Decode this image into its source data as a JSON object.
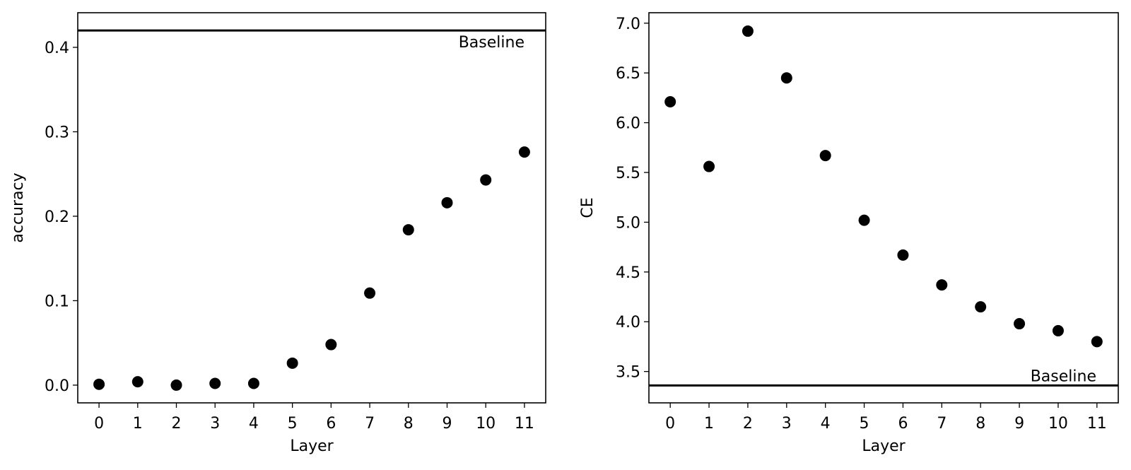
{
  "chart_data": [
    {
      "type": "scatter",
      "xlabel": "Layer",
      "ylabel": "accuracy",
      "x": [
        0,
        1,
        2,
        3,
        4,
        5,
        6,
        7,
        8,
        9,
        10,
        11
      ],
      "y": [
        0.001,
        0.004,
        0.0,
        0.002,
        0.002,
        0.026,
        0.048,
        0.109,
        0.184,
        0.216,
        0.243,
        0.276
      ],
      "xticks": [
        "0",
        "1",
        "2",
        "3",
        "4",
        "5",
        "6",
        "7",
        "8",
        "9",
        "10",
        "11"
      ],
      "yticks": [
        "0.0",
        "0.1",
        "0.2",
        "0.3",
        "0.4"
      ],
      "ytick_values": [
        0.0,
        0.1,
        0.2,
        0.3,
        0.4
      ],
      "xlim": [
        -0.55,
        11.55
      ],
      "ylim": [
        -0.021,
        0.441
      ],
      "baseline": {
        "value": 0.42,
        "label": "Baseline"
      },
      "grid": false,
      "marker_color": "#000000"
    },
    {
      "type": "scatter",
      "xlabel": "Layer",
      "ylabel": "CE",
      "x": [
        0,
        1,
        2,
        3,
        4,
        5,
        6,
        7,
        8,
        9,
        10,
        11
      ],
      "y": [
        6.21,
        5.56,
        6.92,
        6.45,
        5.67,
        5.02,
        4.67,
        4.37,
        4.15,
        3.98,
        3.91,
        3.8
      ],
      "xticks": [
        "0",
        "1",
        "2",
        "3",
        "4",
        "5",
        "6",
        "7",
        "8",
        "9",
        "10",
        "11"
      ],
      "yticks": [
        "3.5",
        "4.0",
        "4.5",
        "5.0",
        "5.5",
        "6.0",
        "6.5",
        "7.0"
      ],
      "ytick_values": [
        3.5,
        4.0,
        4.5,
        5.0,
        5.5,
        6.0,
        6.5,
        7.0
      ],
      "xlim": [
        -0.55,
        11.55
      ],
      "ylim": [
        3.185,
        7.105
      ],
      "baseline": {
        "value": 3.36,
        "label": "Baseline"
      },
      "grid": false,
      "marker_color": "#000000"
    }
  ]
}
